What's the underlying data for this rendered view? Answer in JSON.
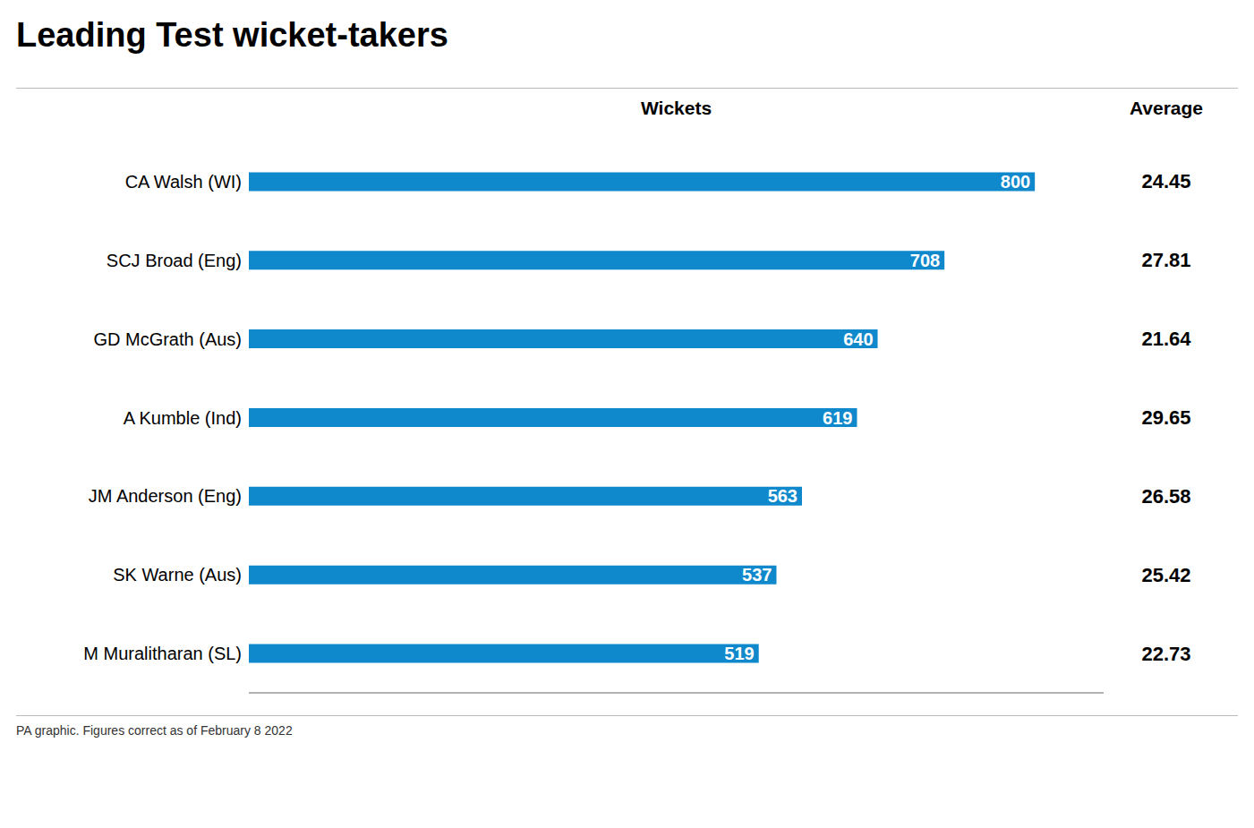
{
  "chart_data": {
    "type": "bar",
    "orientation": "horizontal",
    "title": "Leading Test wicket-takers",
    "x_label": "Wickets",
    "averages_label": "Average",
    "footnote": "PA graphic. Figures correct as of February 8 2022",
    "categories": [
      "CA Walsh (WI)",
      "SCJ Broad (Eng)",
      "GD McGrath (Aus)",
      "A Kumble (Ind)",
      "JM Anderson (Eng)",
      "SK Warne (Aus)",
      "M Muralitharan (SL)"
    ],
    "values": [
      800,
      708,
      640,
      619,
      563,
      537,
      519
    ],
    "averages": [
      24.45,
      27.81,
      21.64,
      29.65,
      26.58,
      25.42,
      22.73
    ],
    "color": "#1089CC",
    "xlim": [
      0,
      870
    ],
    "data_labels": true,
    "tick_labels": "y",
    "grid": false
  }
}
